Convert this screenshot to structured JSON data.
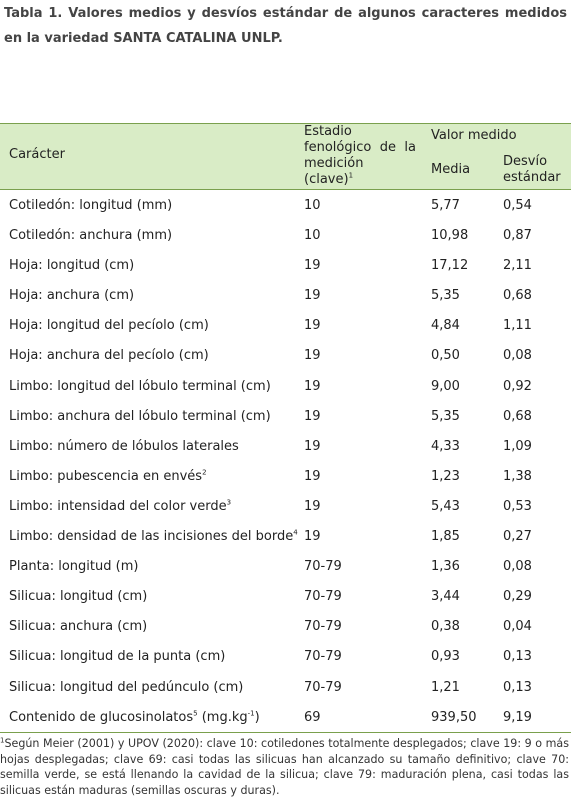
{
  "caption": "Tabla 1. Valores medios y desvíos estándar de algunos caracteres medidos en la variedad SANTA CATALINA UNLP.",
  "headers": {
    "caracter": "Carácter",
    "estadio": "Estadio fenológico de la medición (clave)",
    "estadio_sup": "1",
    "valor_medido": "Valor medido",
    "media": "Media",
    "desvio": "Desvío estándar"
  },
  "rows": [
    {
      "caracter": "Cotiledón: longitud (mm)",
      "sup": "",
      "estadio": "10",
      "media": "5,77",
      "desvio": "0,54"
    },
    {
      "caracter": "Cotiledón: anchura (mm)",
      "sup": "",
      "estadio": "10",
      "media": "10,98",
      "desvio": "0,87"
    },
    {
      "caracter": "Hoja: longitud (cm)",
      "sup": "",
      "estadio": "19",
      "media": "17,12",
      "desvio": "2,11"
    },
    {
      "caracter": "Hoja: anchura (cm)",
      "sup": "",
      "estadio": "19",
      "media": "5,35",
      "desvio": "0,68"
    },
    {
      "caracter": "Hoja: longitud del pecíolo (cm)",
      "sup": "",
      "estadio": "19",
      "media": "4,84",
      "desvio": "1,11"
    },
    {
      "caracter": "Hoja: anchura del pecíolo (cm)",
      "sup": "",
      "estadio": "19",
      "media": "0,50",
      "desvio": "0,08"
    },
    {
      "caracter": "Limbo: longitud del lóbulo terminal (cm)",
      "sup": "",
      "estadio": "19",
      "media": "9,00",
      "desvio": "0,92"
    },
    {
      "caracter": "Limbo: anchura del lóbulo terminal (cm)",
      "sup": "",
      "estadio": "19",
      "media": "5,35",
      "desvio": "0,68"
    },
    {
      "caracter": "Limbo: número de lóbulos laterales",
      "sup": "",
      "estadio": "19",
      "media": "4,33",
      "desvio": "1,09"
    },
    {
      "caracter": "Limbo: pubescencia en envés",
      "sup": "2",
      "estadio": "19",
      "media": "1,23",
      "desvio": "1,38"
    },
    {
      "caracter": "Limbo: intensidad del color verde",
      "sup": "3",
      "estadio": "19",
      "media": "5,43",
      "desvio": "0,53"
    },
    {
      "caracter": "Limbo: densidad de las incisiones del borde",
      "sup": "4",
      "estadio": "19",
      "media": "1,85",
      "desvio": "0,27"
    },
    {
      "caracter": "Planta: longitud (m)",
      "sup": "",
      "estadio": "70-79",
      "media": "1,36",
      "desvio": "0,08"
    },
    {
      "caracter": "Silicua: longitud (cm)",
      "sup": "",
      "estadio": "70-79",
      "media": "3,44",
      "desvio": "0,29"
    },
    {
      "caracter": "Silicua: anchura (cm)",
      "sup": "",
      "estadio": "70-79",
      "media": "0,38",
      "desvio": "0,04"
    },
    {
      "caracter": "Silicua: longitud de la punta (cm)",
      "sup": "",
      "estadio": "70-79",
      "media": "0,93",
      "desvio": "0,13"
    },
    {
      "caracter": "Silicua: longitud del pedúnculo (cm)",
      "sup": "",
      "estadio": "70-79",
      "media": "1,21",
      "desvio": "0,13"
    },
    {
      "caracter": "Contenido de glucosinolatos",
      "sup": "5",
      "unit_pre": " (mg.kg",
      "unit_sup": "-1",
      "unit_post": ")",
      "estadio": "69",
      "media": "939,50",
      "desvio": "9,19"
    }
  ],
  "footnote": {
    "sup": "1",
    "text": "Según Meier (2001) y UPOV (2020): clave 10: cotiledones totalmente desplegados; clave 19: 9 o más hojas desplegadas; clave 69: casi todas las silicuas han alcanzado su tamaño definitivo; clave 70: semilla verde, se está llenando la cavidad de la silicua; clave 79: maduración plena, casi todas las silicuas están maduras (semillas oscuras y duras)."
  }
}
